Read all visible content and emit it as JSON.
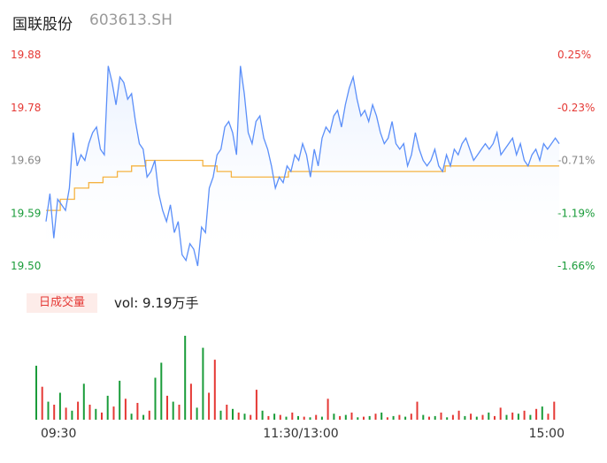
{
  "header": {
    "name": "国联股份",
    "code": "603613.SH"
  },
  "volume_panel": {
    "badge": "日成交量",
    "summary": "vol: 9.19万手"
  },
  "colors": {
    "price_line": "#5b8ff9",
    "avg_line": "#f5b342",
    "up": "#e53935",
    "down": "#1a9c3a",
    "area_top": "#e6efff",
    "neutral": "#888888"
  },
  "chart_data": {
    "type": "line",
    "y_ticks": [
      "19.88",
      "19.78",
      "19.69",
      "19.59",
      "19.50"
    ],
    "pct_ticks": [
      "0.25%",
      "-0.23%",
      "-0.71%",
      "-1.19%",
      "-1.66%"
    ],
    "ylim": [
      19.5,
      19.88
    ],
    "x_ticks": [
      "09:30",
      "11:30/13:00",
      "15:00"
    ],
    "series": [
      {
        "type": "price",
        "values": [
          19.58,
          19.63,
          19.55,
          19.62,
          19.61,
          19.6,
          19.64,
          19.74,
          19.68,
          19.7,
          19.69,
          19.72,
          19.74,
          19.75,
          19.71,
          19.7,
          19.86,
          19.83,
          19.79,
          19.84,
          19.83,
          19.8,
          19.81,
          19.76,
          19.72,
          19.71,
          19.66,
          19.67,
          19.69,
          19.63,
          19.6,
          19.58,
          19.61,
          19.56,
          19.58,
          19.52,
          19.51,
          19.54,
          19.53,
          19.5,
          19.57,
          19.56,
          19.64,
          19.66,
          19.7,
          19.71,
          19.75,
          19.76,
          19.74,
          19.7,
          19.86,
          19.81,
          19.74,
          19.72,
          19.76,
          19.77,
          19.73,
          19.71,
          19.68,
          19.64,
          19.66,
          19.65,
          19.68,
          19.67,
          19.7,
          19.69,
          19.72,
          19.7,
          19.66,
          19.71,
          19.68,
          19.73,
          19.75,
          19.74,
          19.77,
          19.78,
          19.75,
          19.79,
          19.82,
          19.84,
          19.8,
          19.77,
          19.78,
          19.76,
          19.79,
          19.77,
          19.74,
          19.72,
          19.73,
          19.76,
          19.72,
          19.71,
          19.72,
          19.68,
          19.7,
          19.74,
          19.71,
          19.69,
          19.68,
          19.69,
          19.71,
          19.68,
          19.67,
          19.7,
          19.68,
          19.71,
          19.7,
          19.72,
          19.73,
          19.71,
          19.69,
          19.7,
          19.71,
          19.72,
          19.71,
          19.72,
          19.74,
          19.7,
          19.71,
          19.72,
          19.73,
          19.7,
          19.72,
          19.69,
          19.68,
          19.7,
          19.71,
          19.69,
          19.72,
          19.71,
          19.72,
          19.73,
          19.72
        ],
        "color_key": "price_line"
      },
      {
        "type": "average",
        "values": [
          19.6,
          19.62,
          19.64,
          19.65,
          19.66,
          19.67,
          19.68,
          19.69,
          19.69,
          19.69,
          19.69,
          19.68,
          19.67,
          19.66,
          19.66,
          19.66,
          19.66,
          19.67,
          19.67,
          19.67,
          19.67,
          19.67,
          19.67,
          19.67,
          19.67,
          19.67,
          19.67,
          19.67,
          19.68,
          19.68,
          19.68,
          19.68,
          19.68,
          19.68,
          19.68,
          19.68,
          19.68
        ],
        "color_key": "avg_line"
      }
    ],
    "volume": [
      {
        "v": 90,
        "up": false
      },
      {
        "v": 55,
        "up": true
      },
      {
        "v": 30,
        "up": false
      },
      {
        "v": 25,
        "up": true
      },
      {
        "v": 45,
        "up": false
      },
      {
        "v": 20,
        "up": true
      },
      {
        "v": 15,
        "up": false
      },
      {
        "v": 30,
        "up": true
      },
      {
        "v": 60,
        "up": false
      },
      {
        "v": 25,
        "up": true
      },
      {
        "v": 18,
        "up": false
      },
      {
        "v": 12,
        "up": true
      },
      {
        "v": 40,
        "up": false
      },
      {
        "v": 22,
        "up": true
      },
      {
        "v": 65,
        "up": false
      },
      {
        "v": 35,
        "up": true
      },
      {
        "v": 10,
        "up": false
      },
      {
        "v": 28,
        "up": true
      },
      {
        "v": 8,
        "up": false
      },
      {
        "v": 15,
        "up": true
      },
      {
        "v": 70,
        "up": false
      },
      {
        "v": 95,
        "up": false
      },
      {
        "v": 40,
        "up": true
      },
      {
        "v": 30,
        "up": false
      },
      {
        "v": 25,
        "up": true
      },
      {
        "v": 140,
        "up": false
      },
      {
        "v": 60,
        "up": true
      },
      {
        "v": 20,
        "up": false
      },
      {
        "v": 120,
        "up": false
      },
      {
        "v": 45,
        "up": true
      },
      {
        "v": 100,
        "up": true
      },
      {
        "v": 15,
        "up": false
      },
      {
        "v": 25,
        "up": true
      },
      {
        "v": 18,
        "up": false
      },
      {
        "v": 12,
        "up": true
      },
      {
        "v": 10,
        "up": false
      },
      {
        "v": 8,
        "up": true
      },
      {
        "v": 50,
        "up": true
      },
      {
        "v": 15,
        "up": false
      },
      {
        "v": 6,
        "up": true
      },
      {
        "v": 10,
        "up": false
      },
      {
        "v": 8,
        "up": true
      },
      {
        "v": 5,
        "up": false
      },
      {
        "v": 12,
        "up": true
      },
      {
        "v": 6,
        "up": false
      },
      {
        "v": 5,
        "up": true
      },
      {
        "v": 4,
        "up": false
      },
      {
        "v": 8,
        "up": true
      },
      {
        "v": 5,
        "up": false
      },
      {
        "v": 35,
        "up": true
      },
      {
        "v": 10,
        "up": false
      },
      {
        "v": 6,
        "up": true
      },
      {
        "v": 8,
        "up": false
      },
      {
        "v": 12,
        "up": true
      },
      {
        "v": 4,
        "up": false
      },
      {
        "v": 5,
        "up": true
      },
      {
        "v": 6,
        "up": false
      },
      {
        "v": 10,
        "up": true
      },
      {
        "v": 12,
        "up": false
      },
      {
        "v": 4,
        "up": true
      },
      {
        "v": 6,
        "up": false
      },
      {
        "v": 8,
        "up": true
      },
      {
        "v": 5,
        "up": false
      },
      {
        "v": 10,
        "up": true
      },
      {
        "v": 30,
        "up": true
      },
      {
        "v": 8,
        "up": false
      },
      {
        "v": 5,
        "up": true
      },
      {
        "v": 6,
        "up": false
      },
      {
        "v": 12,
        "up": true
      },
      {
        "v": 4,
        "up": false
      },
      {
        "v": 8,
        "up": true
      },
      {
        "v": 15,
        "up": true
      },
      {
        "v": 6,
        "up": false
      },
      {
        "v": 10,
        "up": true
      },
      {
        "v": 5,
        "up": false
      },
      {
        "v": 8,
        "up": true
      },
      {
        "v": 12,
        "up": false
      },
      {
        "v": 6,
        "up": true
      },
      {
        "v": 20,
        "up": true
      },
      {
        "v": 8,
        "up": false
      },
      {
        "v": 12,
        "up": true
      },
      {
        "v": 10,
        "up": false
      },
      {
        "v": 15,
        "up": true
      },
      {
        "v": 8,
        "up": false
      },
      {
        "v": 18,
        "up": true
      },
      {
        "v": 22,
        "up": false
      },
      {
        "v": 10,
        "up": true
      },
      {
        "v": 30,
        "up": true
      }
    ],
    "volume_max": 100
  }
}
